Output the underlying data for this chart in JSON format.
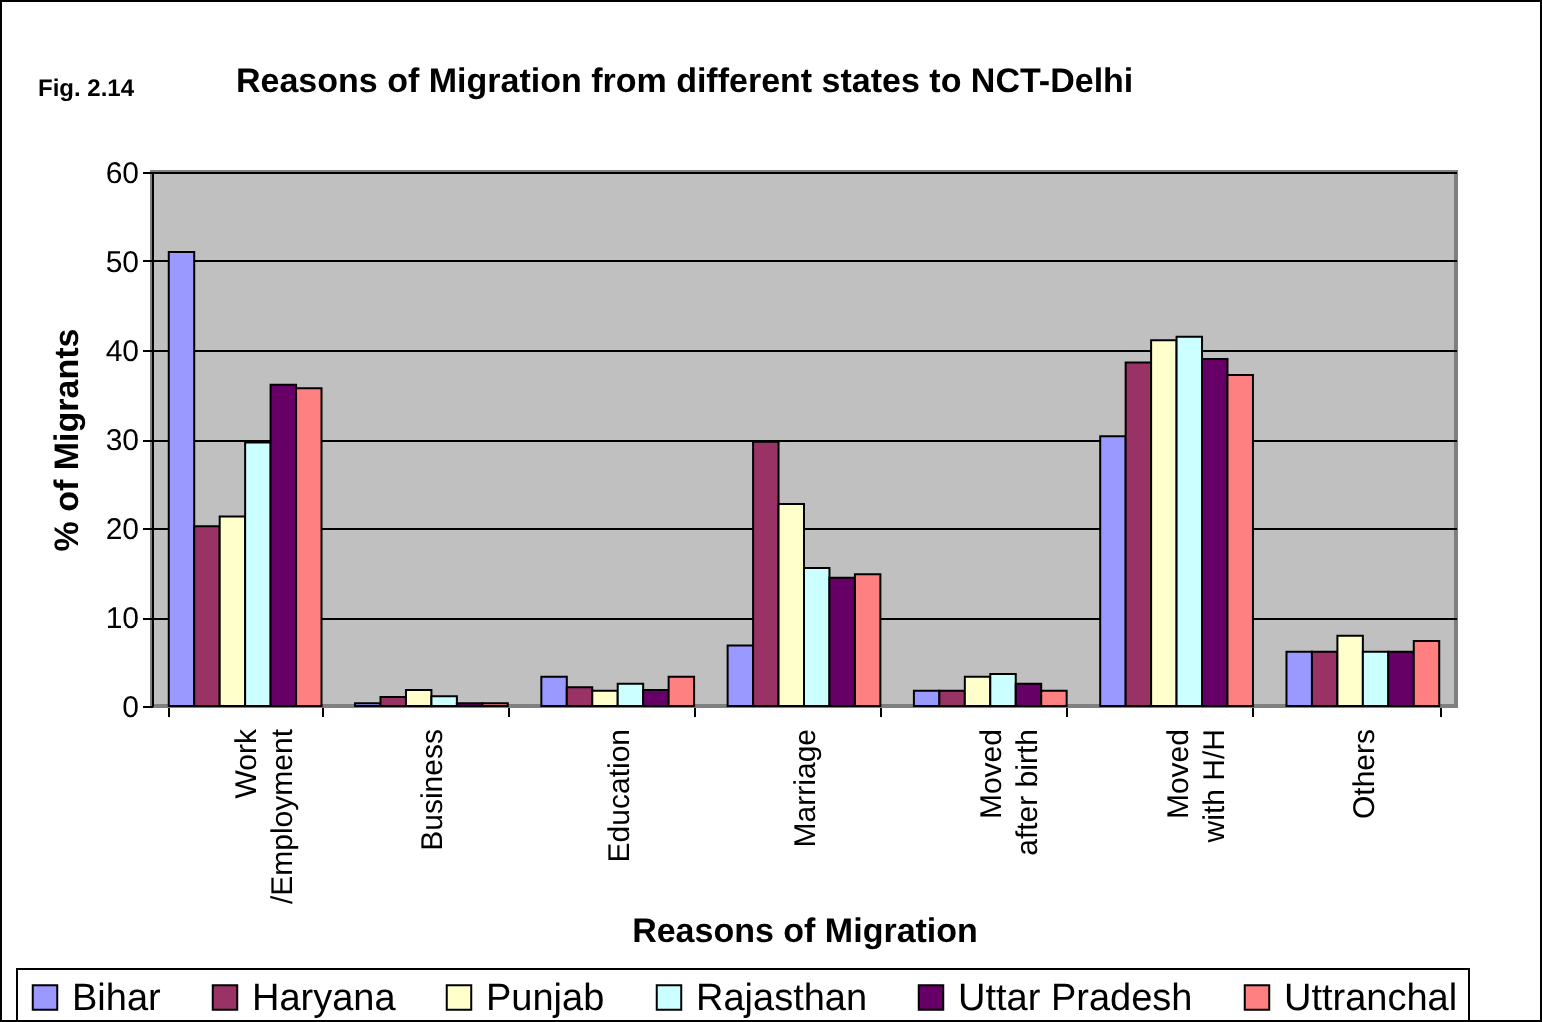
{
  "chart_data": {
    "type": "bar",
    "title": "Reasons of Migration from different states to NCT-Delhi",
    "annotations": [
      "Fig. 2.14"
    ],
    "xlabel": "Reasons of Migration",
    "ylabel": "% of Migrants",
    "categories": [
      "Work\n/Employment",
      "Business",
      "Education",
      "Marriage",
      "Moved\nafter birth",
      "Moved\nwith H/H",
      "Others"
    ],
    "series": [
      {
        "name": "Bihar",
        "color": "#9999ff",
        "values": [
          51,
          0.3,
          3.3,
          6.8,
          1.7,
          30.3,
          6.1
        ]
      },
      {
        "name": "Haryana",
        "color": "#993366",
        "values": [
          20.2,
          1.0,
          2.1,
          29.7,
          1.7,
          38.6,
          6.1
        ]
      },
      {
        "name": "Punjab",
        "color": "#ffffcc",
        "values": [
          21.3,
          1.8,
          1.7,
          22.7,
          3.3,
          41.1,
          7.9
        ]
      },
      {
        "name": "Rajasthan",
        "color": "#ccffff",
        "values": [
          29.6,
          1.1,
          2.5,
          15.5,
          3.6,
          41.5,
          6.1
        ]
      },
      {
        "name": "Uttar Pradesh",
        "color": "#660066",
        "values": [
          36.1,
          0.3,
          1.8,
          14.4,
          2.5,
          39.0,
          6.1
        ]
      },
      {
        "name": "Uttranchal",
        "color": "#ff8080",
        "values": [
          35.7,
          0.3,
          3.3,
          14.8,
          1.7,
          37.2,
          7.3
        ]
      }
    ],
    "ylim": [
      0,
      60
    ],
    "yticks": [
      0,
      10,
      20,
      30,
      40,
      50,
      60
    ],
    "grid": "y",
    "legend": "bottom"
  }
}
